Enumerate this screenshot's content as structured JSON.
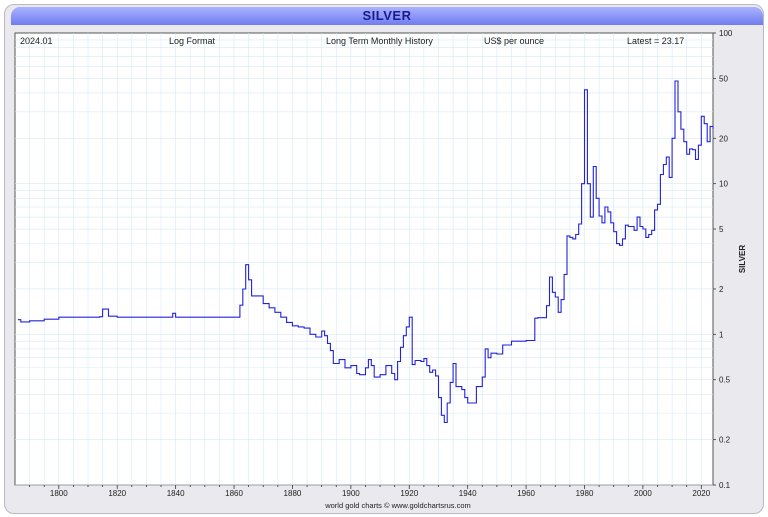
{
  "header": {
    "title": "SILVER",
    "date": "2024.01",
    "format": "Log Format",
    "history": "Long Term Monthly History",
    "units": "US$ per ounce",
    "latest": "Latest = 23.17"
  },
  "footer": "world gold charts © www.goldchartsrus.com",
  "colors": {
    "line": "#2222dd",
    "grid": "#cfe6f2",
    "title_bg": "#7f8af5",
    "title_text": "#1b1b8a"
  },
  "chart_data": {
    "type": "line",
    "title": "SILVER",
    "ylabel": "SILVER",
    "xlabel": "",
    "y_scale": "log",
    "grid": true,
    "xlim": [
      1785,
      2024
    ],
    "ylim": [
      0.1,
      100
    ],
    "x_ticks": [
      "1800",
      "1820",
      "1840",
      "1860",
      "1880",
      "1900",
      "1920",
      "1940",
      "1960",
      "1980",
      "2000",
      "2020"
    ],
    "y_ticks": [
      "0.1",
      "0.2",
      "0.5",
      "1",
      "2",
      "5",
      "10",
      "20",
      "50",
      "100"
    ],
    "series": [
      {
        "points": [
          [
            1786,
            1.25
          ],
          [
            1787,
            1.21
          ],
          [
            1790,
            1.23
          ],
          [
            1793,
            1.23
          ],
          [
            1795,
            1.26
          ],
          [
            1800,
            1.3
          ],
          [
            1805,
            1.3
          ],
          [
            1810,
            1.3
          ],
          [
            1814,
            1.31
          ],
          [
            1815,
            1.47
          ],
          [
            1816,
            1.47
          ],
          [
            1817,
            1.32
          ],
          [
            1820,
            1.3
          ],
          [
            1830,
            1.3
          ],
          [
            1838,
            1.3
          ],
          [
            1839,
            1.38
          ],
          [
            1840,
            1.3
          ],
          [
            1850,
            1.3
          ],
          [
            1860,
            1.3
          ],
          [
            1861,
            1.3
          ],
          [
            1862,
            1.56
          ],
          [
            1863,
            2.0
          ],
          [
            1864,
            2.9
          ],
          [
            1865,
            2.3
          ],
          [
            1866,
            1.8
          ],
          [
            1868,
            1.8
          ],
          [
            1870,
            1.6
          ],
          [
            1872,
            1.5
          ],
          [
            1874,
            1.4
          ],
          [
            1876,
            1.3
          ],
          [
            1878,
            1.2
          ],
          [
            1880,
            1.14
          ],
          [
            1882,
            1.12
          ],
          [
            1884,
            1.1
          ],
          [
            1886,
            1.0
          ],
          [
            1888,
            0.96
          ],
          [
            1890,
            1.05
          ],
          [
            1891,
            0.98
          ],
          [
            1892,
            0.87
          ],
          [
            1893,
            0.78
          ],
          [
            1894,
            0.64
          ],
          [
            1896,
            0.68
          ],
          [
            1898,
            0.6
          ],
          [
            1899,
            0.6
          ],
          [
            1900,
            0.62
          ],
          [
            1902,
            0.55
          ],
          [
            1903,
            0.54
          ],
          [
            1905,
            0.6
          ],
          [
            1906,
            0.68
          ],
          [
            1907,
            0.62
          ],
          [
            1908,
            0.52
          ],
          [
            1910,
            0.54
          ],
          [
            1912,
            0.62
          ],
          [
            1914,
            0.55
          ],
          [
            1915,
            0.5
          ],
          [
            1916,
            0.66
          ],
          [
            1917,
            0.82
          ],
          [
            1918,
            0.98
          ],
          [
            1919,
            1.12
          ],
          [
            1920,
            1.3
          ],
          [
            1921,
            0.63
          ],
          [
            1922,
            0.67
          ],
          [
            1924,
            0.66
          ],
          [
            1925,
            0.69
          ],
          [
            1926,
            0.62
          ],
          [
            1927,
            0.56
          ],
          [
            1928,
            0.58
          ],
          [
            1929,
            0.53
          ],
          [
            1930,
            0.38
          ],
          [
            1931,
            0.29
          ],
          [
            1932,
            0.26
          ],
          [
            1933,
            0.35
          ],
          [
            1934,
            0.48
          ],
          [
            1935,
            0.64
          ],
          [
            1936,
            0.45
          ],
          [
            1937,
            0.45
          ],
          [
            1938,
            0.43
          ],
          [
            1939,
            0.38
          ],
          [
            1940,
            0.35
          ],
          [
            1941,
            0.35
          ],
          [
            1943,
            0.45
          ],
          [
            1945,
            0.52
          ],
          [
            1946,
            0.8
          ],
          [
            1947,
            0.7
          ],
          [
            1948,
            0.75
          ],
          [
            1950,
            0.74
          ],
          [
            1952,
            0.85
          ],
          [
            1955,
            0.9
          ],
          [
            1960,
            0.91
          ],
          [
            1963,
            1.28
          ],
          [
            1964,
            1.29
          ],
          [
            1965,
            1.29
          ],
          [
            1967,
            1.55
          ],
          [
            1968,
            2.4
          ],
          [
            1969,
            1.9
          ],
          [
            1970,
            1.77
          ],
          [
            1971,
            1.4
          ],
          [
            1972,
            1.7
          ],
          [
            1973,
            2.5
          ],
          [
            1974,
            4.5
          ],
          [
            1975,
            4.4
          ],
          [
            1976,
            4.3
          ],
          [
            1977,
            4.6
          ],
          [
            1978,
            5.4
          ],
          [
            1979,
            10
          ],
          [
            1980,
            42
          ],
          [
            1981,
            10
          ],
          [
            1982,
            6
          ],
          [
            1983,
            13
          ],
          [
            1984,
            8
          ],
          [
            1985,
            6.1
          ],
          [
            1986,
            5.5
          ],
          [
            1987,
            7
          ],
          [
            1988,
            6.5
          ],
          [
            1989,
            5.5
          ],
          [
            1990,
            4.8
          ],
          [
            1991,
            4.0
          ],
          [
            1992,
            3.9
          ],
          [
            1993,
            4.3
          ],
          [
            1994,
            5.3
          ],
          [
            1995,
            5.2
          ],
          [
            1996,
            5.2
          ],
          [
            1997,
            4.9
          ],
          [
            1998,
            6.0
          ],
          [
            1999,
            5.2
          ],
          [
            2000,
            5.0
          ],
          [
            2001,
            4.4
          ],
          [
            2002,
            4.6
          ],
          [
            2003,
            4.9
          ],
          [
            2004,
            6.7
          ],
          [
            2005,
            7.3
          ],
          [
            2006,
            11.5
          ],
          [
            2007,
            13.4
          ],
          [
            2008,
            15
          ],
          [
            2009,
            11
          ],
          [
            2010,
            20
          ],
          [
            2011,
            48
          ],
          [
            2012,
            30
          ],
          [
            2013,
            23
          ],
          [
            2014,
            19
          ],
          [
            2015,
            15.7
          ],
          [
            2016,
            17
          ],
          [
            2017,
            16.8
          ],
          [
            2018,
            14.5
          ],
          [
            2019,
            18
          ],
          [
            2020,
            28
          ],
          [
            2021,
            25
          ],
          [
            2022,
            19
          ],
          [
            2023,
            24
          ],
          [
            2024,
            23.17
          ]
        ]
      }
    ]
  }
}
